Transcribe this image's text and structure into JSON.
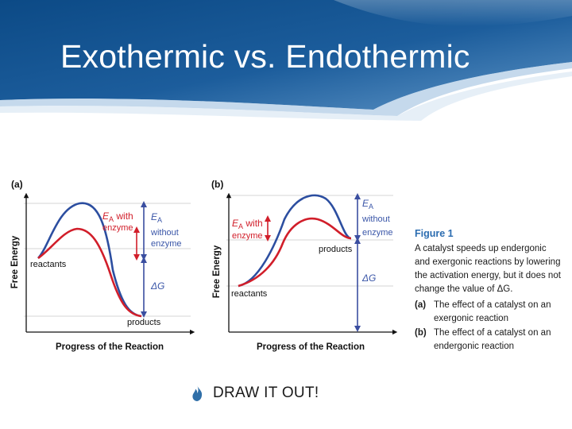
{
  "slide": {
    "title": "Exothermic vs. Endothermic",
    "bullet": "DRAW IT OUT!"
  },
  "colors": {
    "header_dark": "#0c4a86",
    "header_light": "#5f95c6",
    "curve_without_enzyme": "#2c4ea0",
    "curve_with_enzyme": "#d11e2a",
    "arrow_red": "#d11e2a",
    "arrow_blue": "#3a4ea0",
    "label_red": "#d11e2a",
    "label_blue": "#3a56a8",
    "caption_heading": "#2b6cb0",
    "bullet_icon": "#2f6fa8"
  },
  "figure": {
    "panel_a": {
      "tag": "(a)",
      "ylabel": "Free Energy",
      "xlabel": "Progress of the Reaction",
      "ea_with_enzyme_1": "E",
      "ea_with_enzyme_sub": "A",
      "ea_with_enzyme_2": " with",
      "ea_with_enzyme_3": "enzyme",
      "ea_without_1": "E",
      "ea_without_sub": "A",
      "ea_without_2": "without",
      "ea_without_3": "enzyme",
      "delta_g": "ΔG",
      "reactants": "reactants",
      "products": "products"
    },
    "panel_b": {
      "tag": "(b)",
      "ylabel": "Free Energy",
      "xlabel": "Progress of the Reaction",
      "ea_with_enzyme_1": "E",
      "ea_with_enzyme_sub": "A",
      "ea_with_enzyme_2": " with",
      "ea_with_enzyme_3": "enzyme",
      "ea_without_1": "E",
      "ea_without_sub": "A",
      "ea_without_2": "without",
      "ea_without_3": "enzyme",
      "delta_g": "ΔG",
      "reactants": "reactants",
      "products": "products"
    },
    "caption": {
      "heading": "Figure 1",
      "line1": "A catalyst speeds up endergonic",
      "line2": "and exergonic reactions by lowering",
      "line3": "the activation energy, but it does not",
      "line4": "change the value of ΔG.",
      "a_tag": "(a)",
      "a_line1": "The effect of a catalyst on an",
      "a_line2": "exergonic reaction",
      "b_tag": "(b)",
      "b_line1": "The effect of a catalyst on an",
      "b_line2": "endergonic reaction"
    }
  }
}
